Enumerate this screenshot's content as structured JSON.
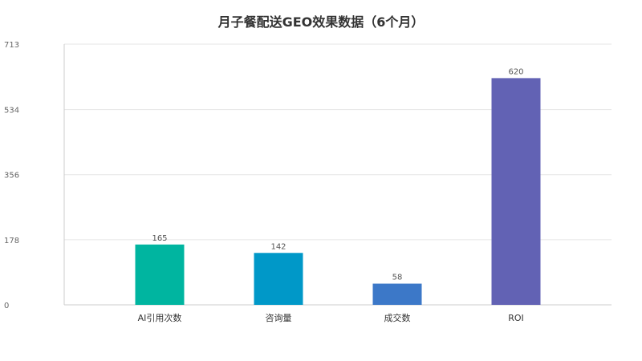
{
  "chart_data": {
    "type": "bar",
    "title": "月子餐配送GEO效果数据（6个月）",
    "categories": [
      "AI引用次数",
      "咨询量",
      "成交数",
      "ROI"
    ],
    "values": [
      165,
      142,
      58,
      620
    ],
    "ylim": [
      0,
      713
    ],
    "yticks": [
      0,
      178,
      356,
      534,
      713
    ],
    "xlabel": "",
    "ylabel": "",
    "grid": true,
    "legend": "none",
    "colors": [
      "#00b5a0",
      "#0098c8",
      "#3c78c8",
      "#6262b4"
    ]
  }
}
